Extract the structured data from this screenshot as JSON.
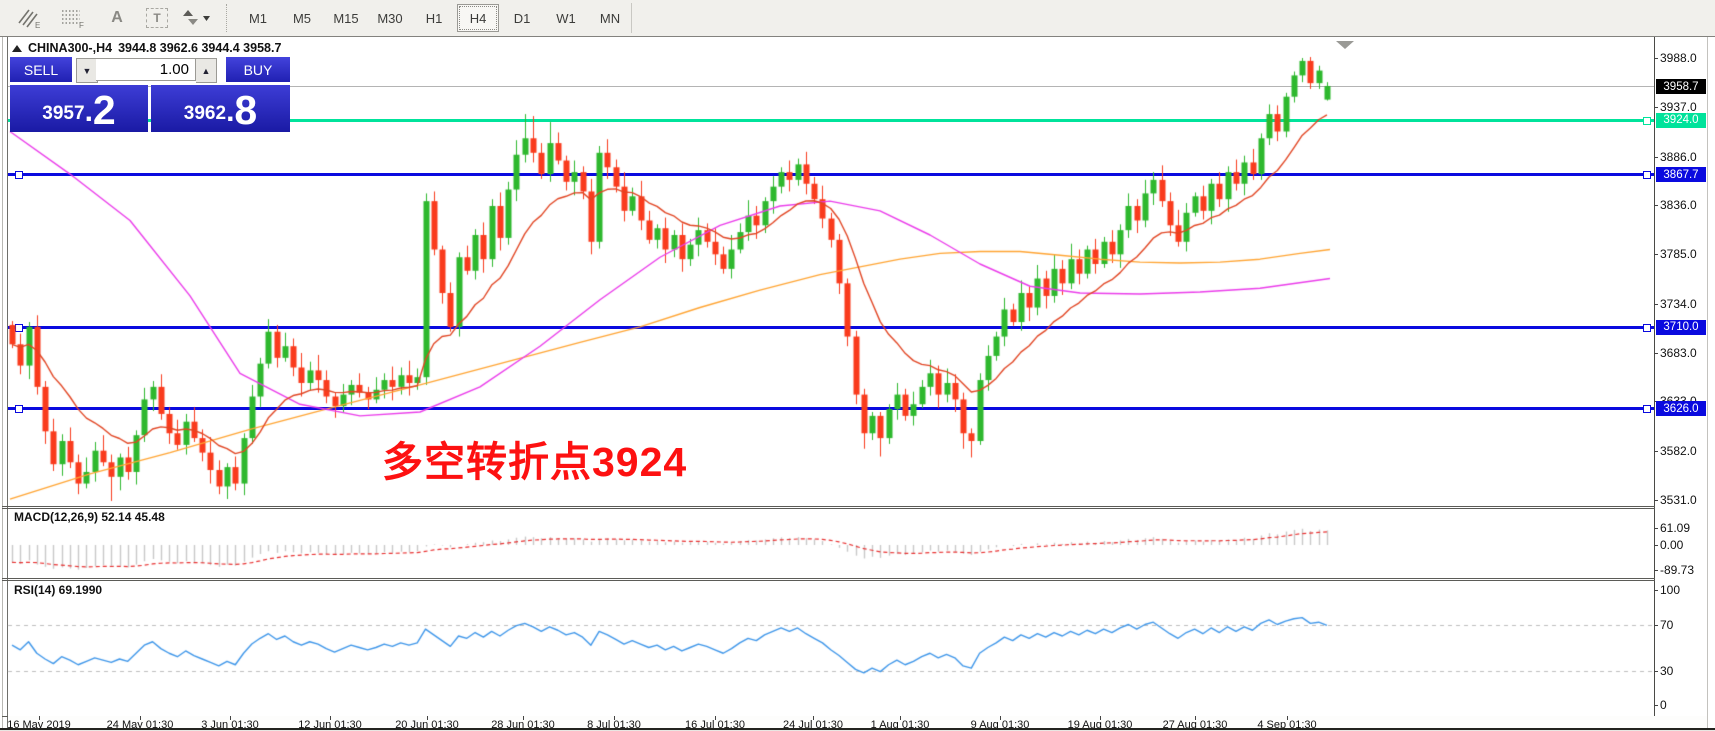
{
  "toolbar": {
    "timeframes": [
      "M1",
      "M5",
      "M15",
      "M30",
      "H1",
      "H4",
      "D1",
      "W1",
      "MN"
    ],
    "active_timeframe": "H4",
    "icon_subs": {
      "draw": "E",
      "grid": "F"
    },
    "text_tool_glyph": "A",
    "textbox_tool_glyph": "T"
  },
  "header": {
    "symbol_period": "CHINA300-,H4",
    "ohlc": "3944.8 3962.6 3944.4 3958.7"
  },
  "trade_panel": {
    "sell_label": "SELL",
    "buy_label": "BUY",
    "volume": "1.00",
    "sell_price_main": "3957",
    "sell_price_pips": "2",
    "buy_price_main": "3962",
    "buy_price_pips": "8"
  },
  "annotation": {
    "text": "多空转折点3924",
    "color": "#FD1111"
  },
  "price_axis": {
    "ticks": [
      "3988.0",
      "3937.0",
      "3886.0",
      "3836.0",
      "3785.0",
      "3734.0",
      "3683.0",
      "3633.0",
      "3582.0",
      "3531.0"
    ],
    "current_price": "3958.7"
  },
  "hlines": [
    {
      "price": 3924.0,
      "label": "3924.0",
      "color": "#00E39B"
    },
    {
      "price": 3867.7,
      "label": "3867.7",
      "color": "#0A0ADF"
    },
    {
      "price": 3710.0,
      "label": "3710.0",
      "color": "#0A0ADF"
    },
    {
      "price": 3626.0,
      "label": "3626.0",
      "color": "#0A0ADF"
    }
  ],
  "indicators": {
    "macd": {
      "label": "MACD(12,26,9) 52.14 45.48",
      "tick_values": [
        61.09,
        0,
        -89.73
      ],
      "tick_labels": [
        "61.09",
        "0.00",
        "-89.73"
      ]
    },
    "rsi": {
      "label": "RSI(14) 69.1990",
      "tick_values": [
        100,
        70,
        30,
        0
      ],
      "tick_labels": [
        "100",
        "70",
        "30",
        "0"
      ],
      "levels": [
        70,
        30
      ]
    }
  },
  "time_axis": {
    "labels": [
      "16 May 2019",
      "24 May 01:30",
      "3 Jun 01:30",
      "12 Jun 01:30",
      "20 Jun 01:30",
      "28 Jun 01:30",
      "8 Jul 01:30",
      "16 Jul 01:30",
      "24 Jul 01:30",
      "1 Aug 01:30",
      "9 Aug 01:30",
      "19 Aug 01:30",
      "27 Aug 01:30",
      "4 Sep 01:30"
    ]
  },
  "chart_data": {
    "type": "candlestick",
    "symbol": "CHINA300-",
    "timeframe": "H4",
    "price_axis_range": [
      3531,
      3988
    ],
    "closes": [
      3692,
      3670,
      3710,
      3648,
      3602,
      3568,
      3592,
      3570,
      3548,
      3560,
      3582,
      3570,
      3555,
      3575,
      3560,
      3598,
      3635,
      3648,
      3620,
      3600,
      3588,
      3612,
      3595,
      3580,
      3562,
      3545,
      3565,
      3548,
      3595,
      3638,
      3672,
      3705,
      3678,
      3690,
      3668,
      3652,
      3665,
      3655,
      3638,
      3628,
      3640,
      3650,
      3642,
      3635,
      3645,
      3655,
      3648,
      3660,
      3652,
      3658,
      3840,
      3790,
      3745,
      3710,
      3782,
      3768,
      3805,
      3780,
      3835,
      3802,
      3852,
      3888,
      3905,
      3890,
      3868,
      3900,
      3882,
      3860,
      3870,
      3850,
      3798,
      3890,
      3875,
      3855,
      3830,
      3845,
      3820,
      3800,
      3812,
      3790,
      3805,
      3780,
      3795,
      3810,
      3798,
      3785,
      3770,
      3790,
      3808,
      3825,
      3815,
      3840,
      3855,
      3870,
      3862,
      3878,
      3858,
      3842,
      3822,
      3800,
      3755,
      3700,
      3640,
      3600,
      3618,
      3595,
      3625,
      3640,
      3618,
      3630,
      3648,
      3662,
      3640,
      3652,
      3635,
      3600,
      3592,
      3655,
      3680,
      3700,
      3728,
      3715,
      3745,
      3730,
      3760,
      3742,
      3770,
      3755,
      3780,
      3765,
      3790,
      3775,
      3798,
      3785,
      3810,
      3835,
      3820,
      3848,
      3862,
      3840,
      3815,
      3798,
      3828,
      3845,
      3830,
      3858,
      3842,
      3870,
      3858,
      3880,
      3868,
      3905,
      3930,
      3912,
      3948,
      3970,
      3985,
      3962,
      3975,
      3959
    ],
    "special_candles": {
      "12": [
        3570,
        3578,
        3530,
        3555
      ],
      "50": [
        3658,
        3848,
        3650,
        3840
      ],
      "62": [
        3888,
        3930,
        3880,
        3905
      ],
      "63": [
        3905,
        3928,
        3880,
        3890
      ],
      "65": [
        3868,
        3922,
        3860,
        3900
      ],
      "99": [
        3822,
        3828,
        3792,
        3800
      ],
      "100": [
        3800,
        3806,
        3744,
        3755
      ],
      "101": [
        3755,
        3760,
        3690,
        3700
      ],
      "102": [
        3700,
        3706,
        3630,
        3640
      ],
      "103": [
        3640,
        3646,
        3584,
        3600
      ],
      "105": [
        3618,
        3622,
        3576,
        3595
      ],
      "115": [
        3635,
        3642,
        3584,
        3600
      ],
      "116": [
        3600,
        3605,
        3575,
        3592
      ],
      "117": [
        3592,
        3662,
        3588,
        3655
      ],
      "151": [
        3868,
        3910,
        3862,
        3905
      ],
      "152": [
        3905,
        3940,
        3898,
        3930
      ],
      "154": [
        3912,
        3952,
        3906,
        3948
      ],
      "155": [
        3948,
        3974,
        3942,
        3970
      ],
      "156": [
        3970,
        3988,
        3963,
        3985
      ],
      "157": [
        3985,
        3989,
        3956,
        3962
      ],
      "158": [
        3962,
        3980,
        3956,
        3975
      ],
      "159": [
        3945,
        3963,
        3944,
        3959
      ]
    },
    "overlays": {
      "ema_fast_period": 13,
      "orange_ma": [
        [
          10,
          3532
        ],
        [
          90,
          3558
        ],
        [
          170,
          3580
        ],
        [
          250,
          3604
        ],
        [
          330,
          3626
        ],
        [
          420,
          3650
        ],
        [
          500,
          3672
        ],
        [
          580,
          3694
        ],
        [
          640,
          3710
        ],
        [
          700,
          3730
        ],
        [
          760,
          3748
        ],
        [
          820,
          3764
        ],
        [
          860,
          3772
        ],
        [
          900,
          3780
        ],
        [
          940,
          3786
        ],
        [
          980,
          3788
        ],
        [
          1020,
          3788
        ],
        [
          1060,
          3784
        ],
        [
          1100,
          3780
        ],
        [
          1140,
          3777
        ],
        [
          1180,
          3776
        ],
        [
          1220,
          3777
        ],
        [
          1260,
          3780
        ],
        [
          1300,
          3786
        ],
        [
          1330,
          3790
        ]
      ],
      "magenta_ma": [
        [
          10,
          3912
        ],
        [
          70,
          3868
        ],
        [
          130,
          3820
        ],
        [
          190,
          3742
        ],
        [
          240,
          3662
        ],
        [
          300,
          3630
        ],
        [
          360,
          3618
        ],
        [
          420,
          3622
        ],
        [
          480,
          3648
        ],
        [
          540,
          3690
        ],
        [
          600,
          3738
        ],
        [
          660,
          3782
        ],
        [
          720,
          3815
        ],
        [
          780,
          3835
        ],
        [
          830,
          3840
        ],
        [
          880,
          3830
        ],
        [
          930,
          3805
        ],
        [
          980,
          3775
        ],
        [
          1030,
          3752
        ],
        [
          1080,
          3745
        ],
        [
          1140,
          3744
        ],
        [
          1200,
          3746
        ],
        [
          1260,
          3750
        ],
        [
          1330,
          3760
        ]
      ]
    },
    "macd_hist": [
      -62,
      -68,
      -55,
      -70,
      -78,
      -85,
      -80,
      -84,
      -88,
      -82,
      -75,
      -72,
      -78,
      -74,
      -80,
      -70,
      -58,
      -50,
      -55,
      -60,
      -65,
      -58,
      -62,
      -66,
      -72,
      -78,
      -70,
      -74,
      -60,
      -45,
      -32,
      -22,
      -28,
      -22,
      -26,
      -30,
      -26,
      -28,
      -32,
      -36,
      -32,
      -28,
      -30,
      -33,
      -30,
      -26,
      -28,
      -24,
      -26,
      -22,
      -5,
      2,
      -2,
      -8,
      0,
      3,
      8,
      10,
      16,
      14,
      20,
      26,
      30,
      28,
      24,
      28,
      25,
      22,
      24,
      20,
      12,
      22,
      24,
      21,
      17,
      19,
      16,
      12,
      14,
      10,
      12,
      8,
      10,
      13,
      11,
      8,
      5,
      8,
      14,
      18,
      16,
      20,
      24,
      27,
      25,
      28,
      24,
      20,
      14,
      2,
      -10,
      -24,
      -38,
      -48,
      -42,
      -46,
      -38,
      -32,
      -36,
      -32,
      -26,
      -20,
      -24,
      -20,
      -24,
      -32,
      -36,
      -24,
      -16,
      -8,
      0,
      -4,
      4,
      0,
      6,
      2,
      8,
      4,
      10,
      6,
      12,
      8,
      14,
      10,
      16,
      22,
      18,
      24,
      28,
      22,
      14,
      8,
      12,
      16,
      12,
      18,
      14,
      20,
      18,
      26,
      22,
      34,
      42,
      38,
      48,
      54,
      58,
      50,
      55,
      52.14
    ],
    "rsi_values": [
      52,
      48,
      55,
      45,
      40,
      36,
      42,
      39,
      35,
      38,
      41,
      39,
      37,
      40,
      38,
      45,
      52,
      55,
      49,
      45,
      42,
      47,
      43,
      40,
      37,
      34,
      38,
      35,
      45,
      53,
      58,
      62,
      57,
      60,
      55,
      52,
      55,
      53,
      49,
      46,
      49,
      52,
      50,
      48,
      50,
      53,
      51,
      54,
      52,
      54,
      66,
      61,
      56,
      51,
      60,
      58,
      63,
      59,
      64,
      60,
      65,
      69,
      71,
      68,
      64,
      68,
      65,
      61,
      63,
      59,
      52,
      64,
      61,
      57,
      53,
      56,
      53,
      50,
      52,
      48,
      51,
      47,
      50,
      53,
      51,
      48,
      45,
      49,
      54,
      58,
      56,
      61,
      64,
      67,
      64,
      67,
      62,
      58,
      54,
      48,
      43,
      37,
      31,
      28,
      32,
      29,
      35,
      39,
      35,
      38,
      42,
      45,
      41,
      44,
      41,
      34,
      32,
      45,
      50,
      54,
      59,
      56,
      61,
      58,
      62,
      59,
      63,
      60,
      64,
      61,
      65,
      62,
      66,
      63,
      67,
      70,
      66,
      70,
      72,
      67,
      62,
      58,
      63,
      66,
      62,
      67,
      63,
      68,
      64,
      68,
      65,
      71,
      74,
      70,
      73,
      75,
      76,
      71,
      72,
      69.2
    ]
  },
  "colors": {
    "bull": "#2EB82E",
    "bear": "#F93B1D",
    "ema": "#E14523",
    "orange_ma": "#FFA432",
    "magenta_ma": "#EA3BEA",
    "macd_hist": "#C8C8C8",
    "macd_signal": "#E83030",
    "rsi_line": "#3E96E9",
    "panel_blue": "#2B2BC4",
    "current_price_line": "#B4B4B4"
  }
}
